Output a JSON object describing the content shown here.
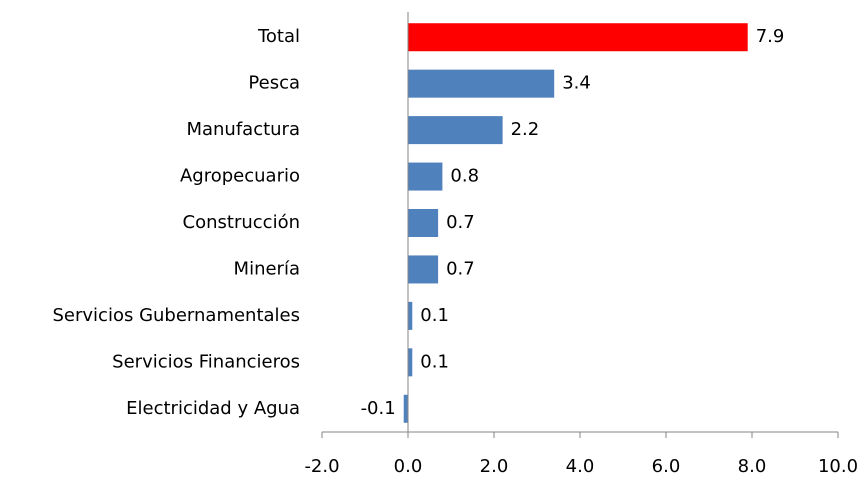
{
  "chart_data": {
    "type": "hbar",
    "categories": [
      "Total",
      "Pesca",
      "Manufactura",
      "Agropecuario",
      "Construcción",
      "Minería",
      "Servicios Gubernamentales",
      "Servicios Financieros",
      "Electricidad y Agua"
    ],
    "values": [
      7.9,
      3.4,
      2.2,
      0.8,
      0.7,
      0.7,
      0.1,
      0.1,
      -0.1
    ],
    "colors": [
      "#ff0000",
      "#4f81bd",
      "#4f81bd",
      "#4f81bd",
      "#4f81bd",
      "#4f81bd",
      "#4f81bd",
      "#4f81bd",
      "#4f81bd"
    ],
    "xlim": [
      -2,
      10
    ],
    "xticks": [
      {
        "value": -2,
        "label": "-2.0"
      },
      {
        "value": 0,
        "label": "0.0"
      },
      {
        "value": 2,
        "label": "2.0"
      },
      {
        "value": 4,
        "label": "4.0"
      },
      {
        "value": 6,
        "label": "6.0"
      },
      {
        "value": 8,
        "label": "8.0"
      },
      {
        "value": 10,
        "label": "10.0"
      }
    ],
    "grid": false
  }
}
